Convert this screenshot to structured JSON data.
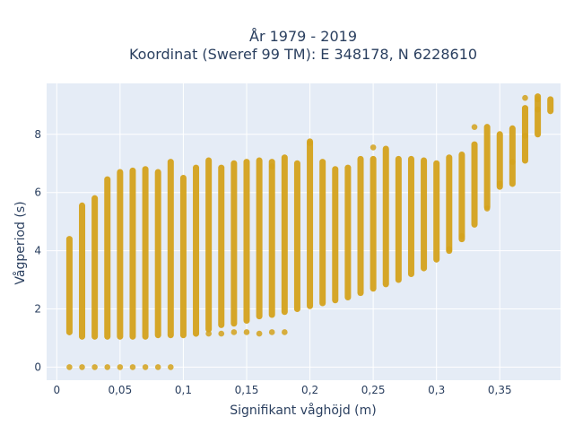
{
  "chart_data": {
    "type": "scatter",
    "title_line1": "År 1979 - 2019",
    "title_line2": "Koordinat (Sweref 99 TM): E 348178, N 6228610",
    "xlabel": "Signifikant våghöjd (m)",
    "ylabel": "Vågperiod (s)",
    "xlim": [
      -0.008,
      0.398
    ],
    "ylim": [
      -0.45,
      9.75
    ],
    "xticks": [
      0,
      0.05,
      0.1,
      0.15,
      0.2,
      0.25,
      0.3,
      0.35
    ],
    "xtick_labels": [
      "0",
      "0,05",
      "0,1",
      "0,15",
      "0,2",
      "0,25",
      "0,3",
      "0,35"
    ],
    "yticks": [
      0,
      2,
      4,
      6,
      8
    ],
    "ytick_labels": [
      "0",
      "2",
      "4",
      "6",
      "8"
    ],
    "grid": true,
    "legend": "none",
    "colors": {
      "marker": "#d4a21c",
      "plot_bg": "#e5ecf6",
      "grid": "#ffffff",
      "text": "#2a3f5f"
    },
    "series": [
      {
        "ranges": [
          {
            "x": 0.01,
            "ymin": 1.2,
            "ymax": 4.4
          },
          {
            "x": 0.02,
            "ymin": 1.05,
            "ymax": 5.55
          },
          {
            "x": 0.03,
            "ymin": 1.05,
            "ymax": 5.8
          },
          {
            "x": 0.04,
            "ymin": 1.05,
            "ymax": 6.45
          },
          {
            "x": 0.05,
            "ymin": 1.05,
            "ymax": 6.7
          },
          {
            "x": 0.06,
            "ymin": 1.05,
            "ymax": 6.75
          },
          {
            "x": 0.07,
            "ymin": 1.05,
            "ymax": 6.8
          },
          {
            "x": 0.08,
            "ymin": 1.1,
            "ymax": 6.7
          },
          {
            "x": 0.09,
            "ymin": 1.1,
            "ymax": 7.05
          },
          {
            "x": 0.1,
            "ymin": 1.1,
            "ymax": 6.5
          },
          {
            "x": 0.11,
            "ymin": 1.15,
            "ymax": 6.85
          },
          {
            "x": 0.12,
            "ymin": 1.3,
            "ymax": 7.1
          },
          {
            "x": 0.13,
            "ymin": 1.45,
            "ymax": 6.85
          },
          {
            "x": 0.14,
            "ymin": 1.5,
            "ymax": 7.0
          },
          {
            "x": 0.15,
            "ymin": 1.6,
            "ymax": 7.05
          },
          {
            "x": 0.16,
            "ymin": 1.75,
            "ymax": 7.1
          },
          {
            "x": 0.17,
            "ymin": 1.8,
            "ymax": 7.05
          },
          {
            "x": 0.18,
            "ymin": 1.9,
            "ymax": 7.2
          },
          {
            "x": 0.19,
            "ymin": 2.0,
            "ymax": 7.0
          },
          {
            "x": 0.2,
            "ymin": 2.1,
            "ymax": 7.75
          },
          {
            "x": 0.21,
            "ymin": 2.2,
            "ymax": 7.05
          },
          {
            "x": 0.22,
            "ymin": 2.3,
            "ymax": 6.8
          },
          {
            "x": 0.23,
            "ymin": 2.4,
            "ymax": 6.85
          },
          {
            "x": 0.24,
            "ymin": 2.55,
            "ymax": 7.15
          },
          {
            "x": 0.25,
            "ymin": 2.7,
            "ymax": 7.15
          },
          {
            "x": 0.26,
            "ymin": 2.85,
            "ymax": 7.5
          },
          {
            "x": 0.27,
            "ymin": 3.0,
            "ymax": 7.15
          },
          {
            "x": 0.28,
            "ymin": 3.2,
            "ymax": 7.15
          },
          {
            "x": 0.29,
            "ymin": 3.4,
            "ymax": 7.1
          },
          {
            "x": 0.3,
            "ymin": 3.7,
            "ymax": 7.0
          },
          {
            "x": 0.31,
            "ymin": 4.0,
            "ymax": 7.2
          },
          {
            "x": 0.32,
            "ymin": 4.4,
            "ymax": 7.3
          },
          {
            "x": 0.33,
            "ymin": 4.9,
            "ymax": 7.65
          },
          {
            "x": 0.34,
            "ymin": 5.5,
            "ymax": 8.25
          },
          {
            "x": 0.35,
            "ymin": 6.2,
            "ymax": 8.0
          },
          {
            "x": 0.36,
            "ymin": 6.3,
            "ymax": 8.2
          },
          {
            "x": 0.37,
            "ymin": 7.1,
            "ymax": 8.9
          },
          {
            "x": 0.38,
            "ymin": 8.0,
            "ymax": 9.3
          },
          {
            "x": 0.39,
            "ymin": 8.8,
            "ymax": 9.2
          }
        ],
        "points": [
          {
            "x": 0.01,
            "y": 0
          },
          {
            "x": 0.02,
            "y": 0
          },
          {
            "x": 0.03,
            "y": 0
          },
          {
            "x": 0.04,
            "y": 0
          },
          {
            "x": 0.05,
            "y": 0
          },
          {
            "x": 0.06,
            "y": 0
          },
          {
            "x": 0.07,
            "y": 0
          },
          {
            "x": 0.08,
            "y": 0
          },
          {
            "x": 0.09,
            "y": 0
          },
          {
            "x": 0.12,
            "y": 1.15
          },
          {
            "x": 0.13,
            "y": 1.15
          },
          {
            "x": 0.14,
            "y": 1.2
          },
          {
            "x": 0.15,
            "y": 1.2
          },
          {
            "x": 0.16,
            "y": 1.15
          },
          {
            "x": 0.17,
            "y": 1.2
          },
          {
            "x": 0.18,
            "y": 1.2
          },
          {
            "x": 0.31,
            "y": 4.05
          },
          {
            "x": 0.32,
            "y": 4.5
          },
          {
            "x": 0.34,
            "y": 5.45
          },
          {
            "x": 0.35,
            "y": 6.3
          },
          {
            "x": 0.36,
            "y": 7.05
          },
          {
            "x": 0.37,
            "y": 7.95
          },
          {
            "x": 0.38,
            "y": 8.85
          },
          {
            "x": 0.17,
            "y": 6.9
          },
          {
            "x": 0.2,
            "y": 7.7
          },
          {
            "x": 0.25,
            "y": 7.55
          },
          {
            "x": 0.33,
            "y": 8.25
          },
          {
            "x": 0.37,
            "y": 9.25
          },
          {
            "x": 0.38,
            "y": 9.2
          }
        ]
      }
    ]
  }
}
